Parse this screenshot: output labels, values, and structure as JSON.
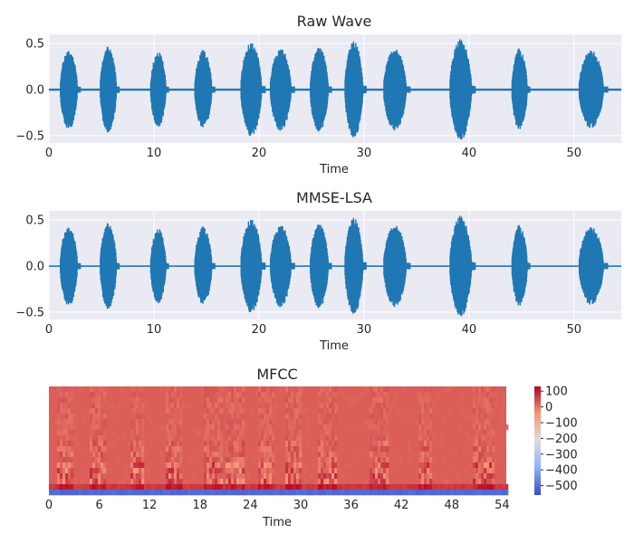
{
  "chart_data": [
    {
      "type": "line",
      "title": "Raw Wave",
      "xlabel": "Time",
      "ylabel": "",
      "xlim": [
        0,
        54.5
      ],
      "ylim": [
        -0.58,
        0.6
      ],
      "xticks": [
        0,
        10,
        20,
        30,
        40,
        50
      ],
      "yticks": [
        0.5,
        0.0,
        -0.5
      ],
      "ytick_labels": [
        "0.5",
        "0.0",
        "−0.5"
      ],
      "grid": true,
      "background": "#eaeaf2",
      "line_color": "#1f77b4",
      "bursts": [
        {
          "start": 1.1,
          "end": 3.0,
          "amp": 0.44
        },
        {
          "start": 4.9,
          "end": 6.7,
          "amp": 0.47
        },
        {
          "start": 9.7,
          "end": 11.4,
          "amp": 0.41
        },
        {
          "start": 13.9,
          "end": 15.8,
          "amp": 0.43
        },
        {
          "start": 18.3,
          "end": 20.6,
          "amp": 0.51
        },
        {
          "start": 21.1,
          "end": 23.4,
          "amp": 0.45
        },
        {
          "start": 24.9,
          "end": 26.9,
          "amp": 0.46
        },
        {
          "start": 28.2,
          "end": 30.2,
          "amp": 0.53
        },
        {
          "start": 31.9,
          "end": 34.4,
          "amp": 0.45
        },
        {
          "start": 38.2,
          "end": 40.6,
          "amp": 0.55
        },
        {
          "start": 44.1,
          "end": 45.8,
          "amp": 0.45
        },
        {
          "start": 50.5,
          "end": 53.2,
          "amp": 0.43
        }
      ]
    },
    {
      "type": "line",
      "title": "MMSE-LSA",
      "xlabel": "Time",
      "ylabel": "",
      "xlim": [
        0,
        54.5
      ],
      "ylim": [
        -0.58,
        0.6
      ],
      "xticks": [
        0,
        10,
        20,
        30,
        40,
        50
      ],
      "yticks": [
        0.5,
        0.0,
        -0.5
      ],
      "ytick_labels": [
        "0.5",
        "0.0",
        "−0.5"
      ],
      "grid": true,
      "background": "#eaeaf2",
      "line_color": "#1f77b4",
      "bursts": [
        {
          "start": 1.1,
          "end": 3.0,
          "amp": 0.44
        },
        {
          "start": 4.9,
          "end": 6.7,
          "amp": 0.47
        },
        {
          "start": 9.7,
          "end": 11.4,
          "amp": 0.41
        },
        {
          "start": 13.9,
          "end": 15.8,
          "amp": 0.43
        },
        {
          "start": 18.3,
          "end": 20.6,
          "amp": 0.51
        },
        {
          "start": 21.1,
          "end": 23.4,
          "amp": 0.45
        },
        {
          "start": 24.9,
          "end": 26.9,
          "amp": 0.46
        },
        {
          "start": 28.2,
          "end": 30.2,
          "amp": 0.53
        },
        {
          "start": 31.9,
          "end": 34.4,
          "amp": 0.45
        },
        {
          "start": 38.2,
          "end": 40.6,
          "amp": 0.55
        },
        {
          "start": 44.1,
          "end": 45.8,
          "amp": 0.45
        },
        {
          "start": 50.5,
          "end": 53.2,
          "amp": 0.43
        }
      ]
    },
    {
      "type": "heatmap",
      "title": "MFCC",
      "xlabel": "Time",
      "ylabel": "",
      "xlim": [
        0,
        54.5
      ],
      "xticks": [
        0,
        6,
        12,
        18,
        24,
        30,
        36,
        42,
        48,
        54
      ],
      "colormap": "coolwarm",
      "colorbar_range": [
        -560,
        130
      ],
      "colorbar_ticks": [
        100,
        0,
        -100,
        -200,
        -300,
        -400,
        -500
      ],
      "colorbar_tick_labels": [
        "100",
        "0",
        "−100",
        "−200",
        "−300",
        "−400",
        "−500"
      ],
      "speech_segments": [
        [
          1.1,
          3.0
        ],
        [
          4.9,
          6.7
        ],
        [
          9.7,
          11.4
        ],
        [
          13.9,
          15.8
        ],
        [
          18.3,
          20.6
        ],
        [
          21.1,
          23.4
        ],
        [
          24.9,
          26.9
        ],
        [
          28.2,
          30.2
        ],
        [
          31.9,
          34.4
        ],
        [
          38.2,
          40.6
        ],
        [
          44.1,
          45.8
        ],
        [
          50.5,
          53.2
        ]
      ]
    }
  ]
}
